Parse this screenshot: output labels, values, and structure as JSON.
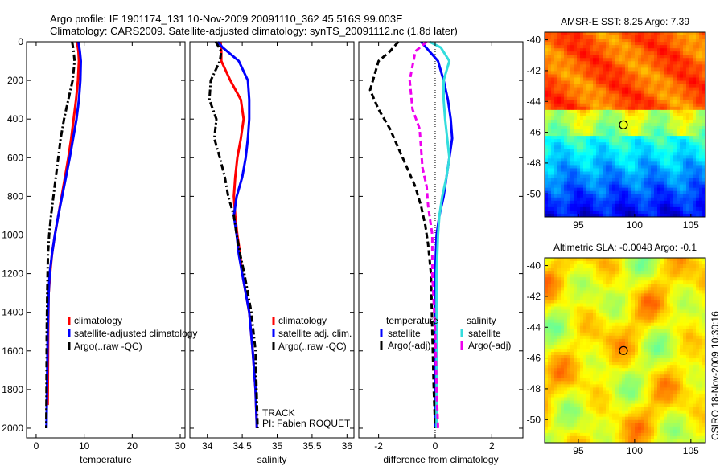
{
  "figure": {
    "title_line1": "Argo profile: IF 1901174_131 10-Nov-2009 20091110_362 45.516S 99.003E",
    "title_line2": "Climatology: CARS2009. Satellite-adjusted climatology: synTS_20091112.nc (1.8d later)",
    "track_label": "TRACK",
    "pi_label": "PI: Fabien ROQUET",
    "footer": "CSIRO 18-Nov-2009 10:30:16"
  },
  "colors": {
    "climatology": "#ff0000",
    "satellite": "#0000ff",
    "argo": "#000000",
    "satellite_salinity": "#33dddd",
    "argo_salinity": "#ee00ee"
  },
  "chart_data": [
    {
      "id": "temperature",
      "type": "line",
      "xlabel": "temperature",
      "ylabel": "",
      "xlim": [
        -2,
        31
      ],
      "ylim": [
        2050,
        0
      ],
      "xticks": [
        0,
        10,
        20,
        30
      ],
      "yticks": [
        0,
        200,
        400,
        600,
        800,
        1000,
        1200,
        1400,
        1600,
        1800,
        2000
      ],
      "legend_placement": "lower-right",
      "legend": [
        "climatology",
        "satellite-adjusted climatology",
        "Argo(..raw -QC)"
      ],
      "series": [
        {
          "name": "climatology",
          "style": "solid",
          "colorKey": "climatology",
          "x": [
            8.5,
            8.8,
            8.9,
            8.7,
            8.3,
            7.8,
            7.3,
            6.7,
            6.0,
            5.3,
            4.6,
            3.9,
            3.3,
            2.9,
            2.6,
            2.5,
            2.45,
            2.4
          ],
          "y": [
            0,
            50,
            100,
            200,
            300,
            400,
            500,
            600,
            700,
            800,
            900,
            1000,
            1100,
            1200,
            1300,
            1500,
            1700,
            1880
          ]
        },
        {
          "name": "satellite-adjusted climatology",
          "style": "solid",
          "colorKey": "satellite",
          "x": [
            8.8,
            9.1,
            9.3,
            9.2,
            8.9,
            8.4,
            7.7,
            7.0,
            6.2,
            5.4,
            4.6,
            3.9,
            3.3,
            2.8,
            2.6,
            2.4,
            2.3,
            2.2,
            2.15
          ],
          "y": [
            0,
            50,
            100,
            200,
            300,
            400,
            500,
            600,
            700,
            800,
            900,
            1000,
            1100,
            1200,
            1300,
            1500,
            1700,
            1900,
            2000
          ]
        },
        {
          "name": "Argo(..raw -QC)",
          "style": "dashdot",
          "colorKey": "argo",
          "x": [
            7.5,
            7.8,
            8.0,
            7.6,
            6.7,
            5.8,
            5.1,
            4.6,
            4.1,
            3.6,
            3.1,
            2.7,
            2.45,
            2.3,
            2.2,
            2.15,
            2.1
          ],
          "y": [
            0,
            50,
            100,
            200,
            300,
            400,
            500,
            600,
            700,
            800,
            900,
            1000,
            1100,
            1300,
            1500,
            1800,
            2000
          ]
        }
      ]
    },
    {
      "id": "salinity",
      "type": "line",
      "xlabel": "salinity",
      "ylabel": "",
      "xlim": [
        33.75,
        36.1
      ],
      "ylim": [
        2050,
        0
      ],
      "xticks": [
        34,
        34.5,
        35,
        35.5,
        36
      ],
      "yticks": [
        0,
        200,
        400,
        600,
        800,
        1000,
        1200,
        1400,
        1600,
        1800,
        2000
      ],
      "legend_placement": "lower-right",
      "legend": [
        "climatology",
        "satellite adj. clim.",
        "Argo(..raw -QC)"
      ],
      "series": [
        {
          "name": "climatology",
          "style": "solid",
          "colorKey": "climatology",
          "x": [
            34.19,
            34.2,
            34.2,
            34.33,
            34.48,
            34.52,
            34.48,
            34.43,
            34.4,
            34.38,
            34.4,
            34.43,
            34.47,
            34.5,
            34.55,
            34.6,
            34.65,
            34.69,
            34.71
          ],
          "y": [
            0,
            50,
            100,
            200,
            300,
            400,
            500,
            600,
            700,
            800,
            900,
            1000,
            1100,
            1200,
            1300,
            1400,
            1600,
            1800,
            2000
          ]
        },
        {
          "name": "satellite adj. clim.",
          "style": "solid",
          "colorKey": "satellite",
          "x": [
            34.15,
            34.22,
            34.45,
            34.58,
            34.6,
            34.6,
            34.58,
            34.55,
            34.5,
            34.42,
            34.38,
            34.42,
            34.45,
            34.5,
            34.55,
            34.6,
            34.65,
            34.69,
            34.71
          ],
          "y": [
            0,
            30,
            100,
            200,
            300,
            400,
            500,
            600,
            700,
            800,
            900,
            1000,
            1100,
            1200,
            1300,
            1400,
            1600,
            1800,
            2000
          ]
        },
        {
          "name": "Argo(..raw -QC)",
          "style": "dashdot",
          "colorKey": "argo",
          "x": [
            34.12,
            34.2,
            34.18,
            34.05,
            34.03,
            34.13,
            34.1,
            34.18,
            34.25,
            34.3,
            34.38,
            34.42,
            34.47,
            34.53,
            34.58,
            34.63,
            34.69,
            34.72
          ],
          "y": [
            0,
            50,
            100,
            200,
            300,
            400,
            500,
            600,
            700,
            800,
            900,
            1000,
            1100,
            1200,
            1300,
            1400,
            1600,
            2000
          ]
        }
      ]
    },
    {
      "id": "difference",
      "type": "line",
      "xlabel": "difference from climatology",
      "ylabel": "",
      "xlim": [
        -2.7,
        3.1
      ],
      "ylim": [
        2050,
        0
      ],
      "xticks": [
        -2,
        0,
        2
      ],
      "yticks": [
        0,
        200,
        400,
        600,
        800,
        1000,
        1200,
        1400,
        1600,
        1800,
        2000
      ],
      "reference_line_x": 0,
      "legend_placement": "lower-center",
      "legend_groups": [
        "temperature",
        "salinity"
      ],
      "legend": [
        "satellite",
        "Argo(-adj)",
        "satellite",
        "Argo(-adj)"
      ],
      "series": [
        {
          "name": "temperature satellite",
          "style": "solid",
          "colorKey": "satellite",
          "x": [
            -0.5,
            -0.2,
            0.1,
            0.3,
            0.45,
            0.55,
            0.6,
            0.5,
            0.4,
            0.3,
            0.15,
            0.05,
            0,
            0,
            0,
            0
          ],
          "y": [
            0,
            50,
            100,
            200,
            300,
            400,
            500,
            600,
            700,
            800,
            900,
            1000,
            1200,
            1500,
            1800,
            2000
          ]
        },
        {
          "name": "temperature Argo(-adj)",
          "style": "dashed",
          "colorKey": "argo",
          "x": [
            -1.3,
            -1.6,
            -2.0,
            -2.3,
            -2.0,
            -1.6,
            -1.3,
            -1.0,
            -0.7,
            -0.5,
            -0.35,
            -0.25,
            -0.15,
            -0.1,
            -0.05,
            0
          ],
          "y": [
            0,
            50,
            100,
            250,
            350,
            450,
            550,
            650,
            750,
            850,
            950,
            1050,
            1200,
            1500,
            1800,
            2000
          ]
        },
        {
          "name": "salinity satellite",
          "style": "solid",
          "colorKey": "satellite_salinity",
          "x": [
            -0.2,
            0.2,
            0.5,
            0.3,
            0.3,
            0.35,
            0.5,
            0.4,
            0.25,
            0.15,
            0.1,
            0.05,
            0.05,
            0.05,
            0.05
          ],
          "y": [
            0,
            30,
            100,
            200,
            300,
            400,
            600,
            700,
            800,
            900,
            1000,
            1200,
            1500,
            1800,
            2000
          ]
        },
        {
          "name": "salinity Argo(-adj)",
          "style": "dashed",
          "colorKey": "argo_salinity",
          "x": [
            -0.3,
            -0.7,
            -0.9,
            -0.8,
            -0.55,
            -0.5,
            -0.45,
            -0.3,
            -0.25,
            -0.1,
            -0.1,
            0,
            0.05,
            0.1
          ],
          "y": [
            0,
            50,
            200,
            350,
            450,
            550,
            650,
            750,
            850,
            1000,
            1200,
            1500,
            1800,
            2000
          ]
        }
      ]
    },
    {
      "id": "sst_map",
      "type": "heatmap",
      "title": "AMSR-E SST: 8.25 Argo: 7.39",
      "xlim": [
        92,
        106.3
      ],
      "ylim": [
        -51.5,
        -39.5
      ],
      "xticks": [
        95,
        100,
        105
      ],
      "yticks": [
        -40,
        -42,
        -44,
        -46,
        -48,
        -50
      ],
      "marker": {
        "lon": 99.003,
        "lat": -45.516
      },
      "colormap": "jet"
    },
    {
      "id": "sla_map",
      "type": "heatmap",
      "title": "Altimetric SLA: -0.0048 Argo: -0.1",
      "xlim": [
        92,
        106.3
      ],
      "ylim": [
        -51.5,
        -39.5
      ],
      "xticks": [
        95,
        100,
        105
      ],
      "yticks": [
        -40,
        -42,
        -44,
        -46,
        -48,
        -50
      ],
      "marker": {
        "lon": 99.003,
        "lat": -45.516
      },
      "colormap": "jet"
    }
  ]
}
